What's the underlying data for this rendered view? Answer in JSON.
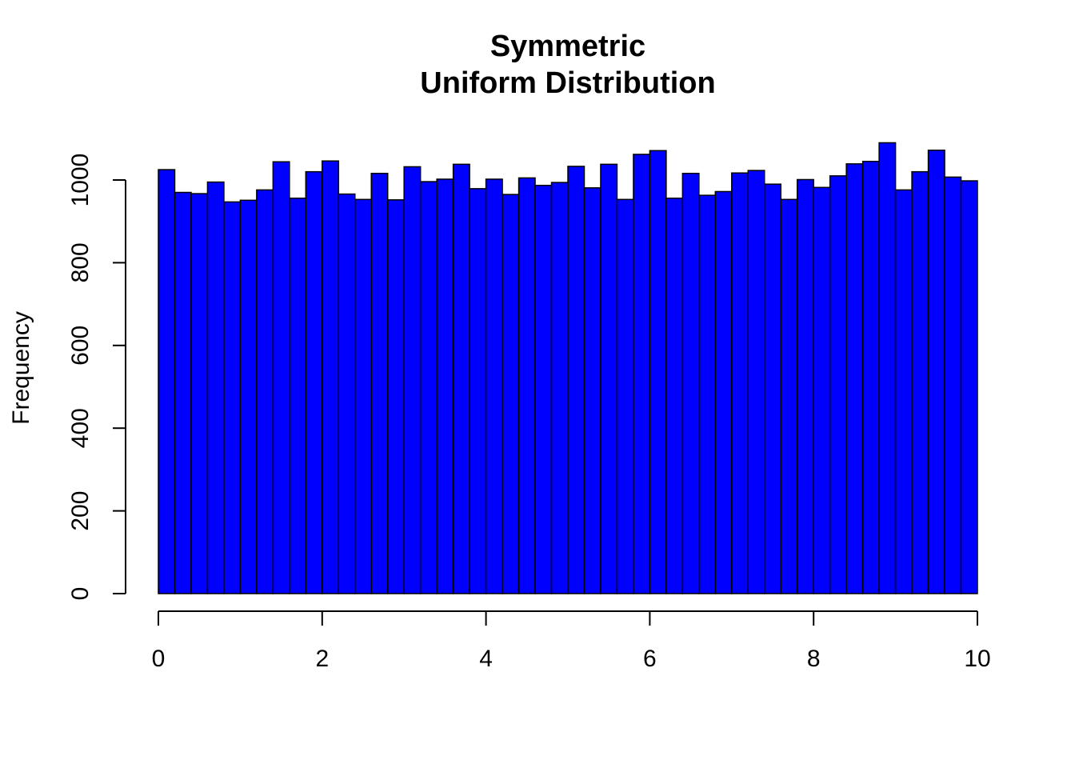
{
  "chart_data": {
    "type": "bar",
    "title": [
      "Symmetric",
      "Uniform Distribution"
    ],
    "xlabel": "",
    "ylabel": "Frequency",
    "bin_width": 0.2,
    "xlim": [
      0,
      10
    ],
    "ylim": [
      0,
      1100
    ],
    "x_ticks": [
      0,
      2,
      4,
      6,
      8,
      10
    ],
    "y_ticks": [
      0,
      200,
      400,
      600,
      800,
      1000
    ],
    "bar_color": "#0000ff",
    "bin_starts": [
      0,
      0.2,
      0.4,
      0.6,
      0.8,
      1.0,
      1.2,
      1.4,
      1.6,
      1.8,
      2.0,
      2.2,
      2.4,
      2.6,
      2.8,
      3.0,
      3.2,
      3.4,
      3.6,
      3.8,
      4.0,
      4.2,
      4.4,
      4.6,
      4.8,
      5.0,
      5.2,
      5.4,
      5.6,
      5.8,
      6.0,
      6.2,
      6.4,
      6.6,
      6.8,
      7.0,
      7.2,
      7.4,
      7.6,
      7.8,
      8.0,
      8.2,
      8.4,
      8.6,
      8.8,
      9.0,
      9.2,
      9.4,
      9.6,
      9.8
    ],
    "values": [
      1025,
      970,
      967,
      995,
      947,
      951,
      976,
      1044,
      956,
      1020,
      1046,
      966,
      953,
      1016,
      952,
      1032,
      996,
      1002,
      1038,
      979,
      1002,
      965,
      1005,
      987,
      994,
      1033,
      981,
      1038,
      953,
      1062,
      1071,
      956,
      1016,
      963,
      972,
      1017,
      1023,
      990,
      953,
      1001,
      982,
      1010,
      1039,
      1045,
      1090,
      976,
      1020,
      1072,
      1007,
      998
    ]
  }
}
